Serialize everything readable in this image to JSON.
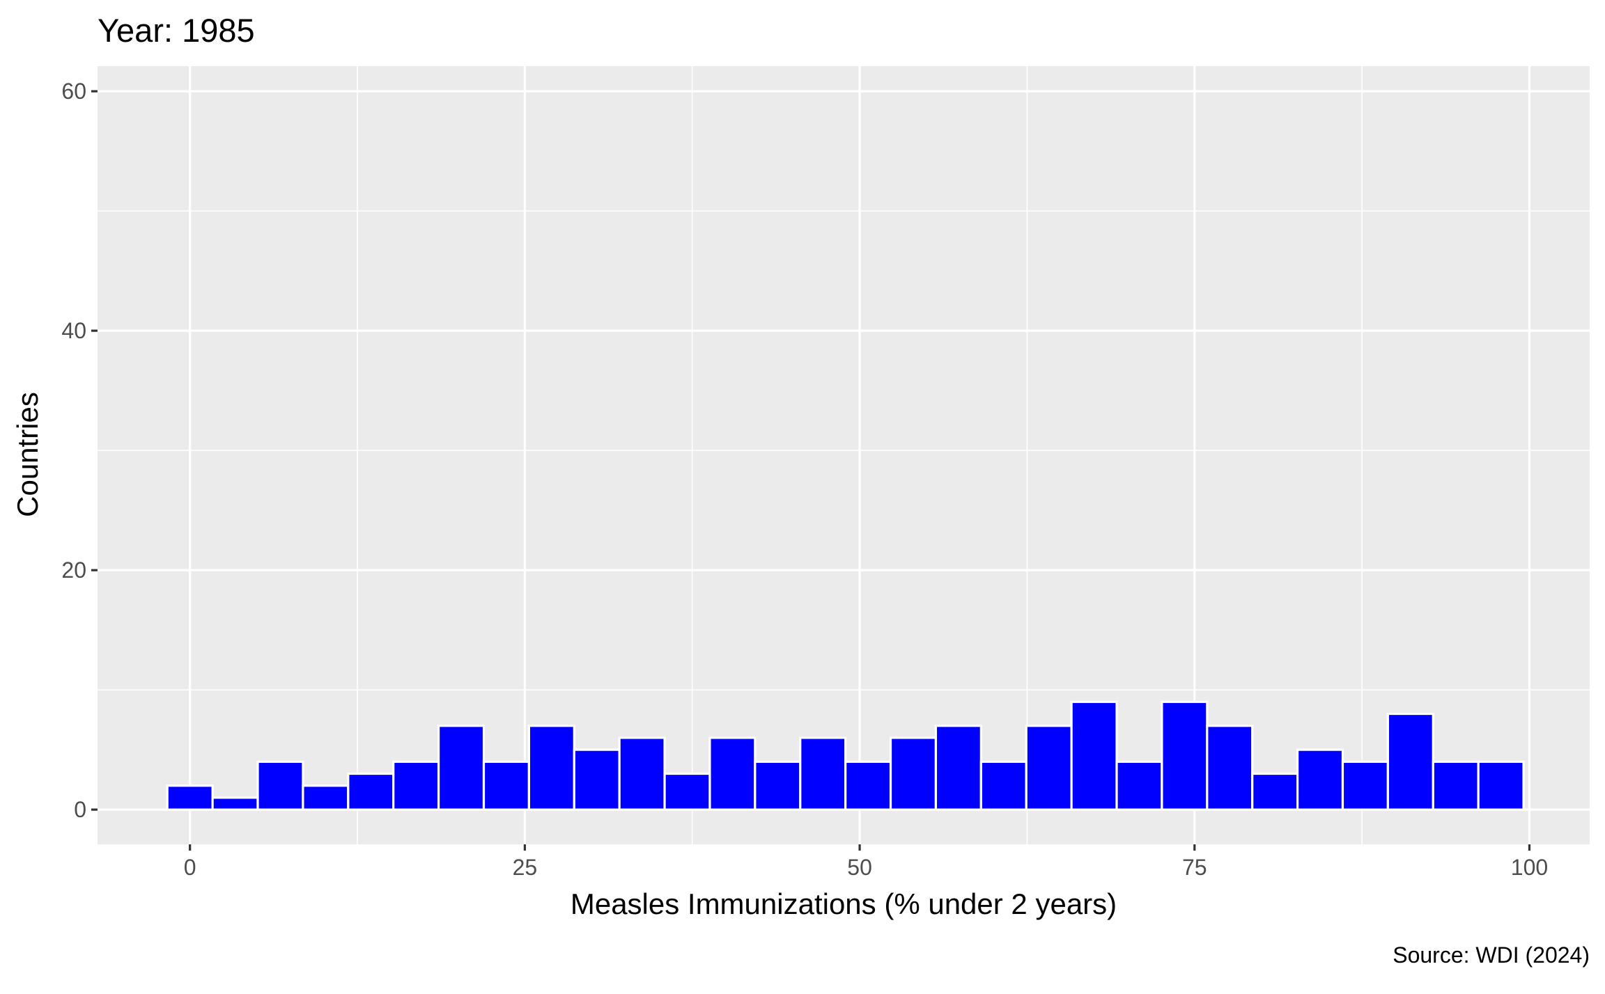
{
  "chart_data": {
    "type": "bar",
    "title": "Year: 1985",
    "xlabel": "Measles Immunizations (% under 2 years)",
    "ylabel": "Countries",
    "caption": "Source: WDI (2024)",
    "xlim": [
      -6.9,
      104.5
    ],
    "ylim": [
      -2.9,
      62.1
    ],
    "x_ticks": [
      0,
      25,
      50,
      75,
      100
    ],
    "y_ticks": [
      0,
      20,
      40,
      60
    ],
    "bin_width": 3.375,
    "bins": [
      {
        "center": 0.0,
        "count": 2
      },
      {
        "center": 3.375,
        "count": 1
      },
      {
        "center": 6.75,
        "count": 4
      },
      {
        "center": 10.125,
        "count": 2
      },
      {
        "center": 13.5,
        "count": 3
      },
      {
        "center": 16.875,
        "count": 4
      },
      {
        "center": 20.25,
        "count": 7
      },
      {
        "center": 23.625,
        "count": 4
      },
      {
        "center": 27.0,
        "count": 7
      },
      {
        "center": 30.375,
        "count": 5
      },
      {
        "center": 33.75,
        "count": 6
      },
      {
        "center": 37.125,
        "count": 3
      },
      {
        "center": 40.5,
        "count": 6
      },
      {
        "center": 43.875,
        "count": 4
      },
      {
        "center": 47.25,
        "count": 6
      },
      {
        "center": 50.625,
        "count": 4
      },
      {
        "center": 54.0,
        "count": 6
      },
      {
        "center": 57.375,
        "count": 7
      },
      {
        "center": 60.75,
        "count": 4
      },
      {
        "center": 64.125,
        "count": 7
      },
      {
        "center": 67.5,
        "count": 9
      },
      {
        "center": 70.875,
        "count": 4
      },
      {
        "center": 74.25,
        "count": 9
      },
      {
        "center": 77.625,
        "count": 7
      },
      {
        "center": 81.0,
        "count": 3
      },
      {
        "center": 84.375,
        "count": 5
      },
      {
        "center": 87.75,
        "count": 4
      },
      {
        "center": 91.125,
        "count": 8
      },
      {
        "center": 94.5,
        "count": 4
      },
      {
        "center": 97.875,
        "count": 4
      }
    ],
    "bar_color": "#0000ff",
    "bar_outline": "#ffffff",
    "panel_background": "#ebebeb",
    "grid": true,
    "legend": "none"
  }
}
